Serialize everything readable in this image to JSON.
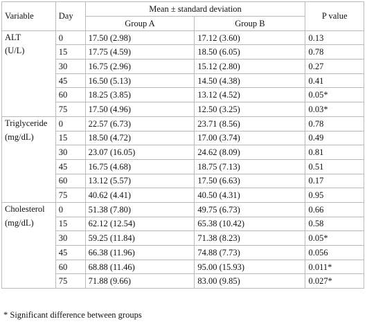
{
  "header": {
    "variable": "Variable",
    "day": "Day",
    "mean_sd": "Mean ± standard deviation",
    "p_value": "P value",
    "group_a": "Group A",
    "group_b": "Group B"
  },
  "groups": [
    {
      "name": "ALT",
      "unit": "(U/L)",
      "rows": [
        {
          "day": "0",
          "a": "17.50 (2.98)",
          "b": "17.12 (3.60)",
          "p": "0.13"
        },
        {
          "day": "15",
          "a": "17.75 (4.59)",
          "b": "18.50 (6.05)",
          "p": "0.78"
        },
        {
          "day": "30",
          "a": "16.75 (2.96)",
          "b": "15.12 (2.80)",
          "p": "0.27"
        },
        {
          "day": "45",
          "a": "16.50 (5.13)",
          "b": "14.50 (4.38)",
          "p": "0.41"
        },
        {
          "day": "60",
          "a": "18.25 (3.85)",
          "b": "13.12 (4.52)",
          "p": "0.05*"
        },
        {
          "day": "75",
          "a": "17.50 (4.96)",
          "b": "12.50 (3.25)",
          "p": "0.03*"
        }
      ]
    },
    {
      "name": "Triglyceride",
      "unit": "(mg/dL)",
      "rows": [
        {
          "day": "0",
          "a": "22.57 (6.73)",
          "b": "23.71 (8.56)",
          "p": "0.78"
        },
        {
          "day": "15",
          "a": "18.50 (4.72)",
          "b": "17.00 (3.74)",
          "p": "0.49"
        },
        {
          "day": "30",
          "a": "23.07 (16.05)",
          "b": "24.62 (8.09)",
          "p": "0.81"
        },
        {
          "day": "45",
          "a": "16.75 (4.68)",
          "b": "18.75 (7.13)",
          "p": "0.51"
        },
        {
          "day": "60",
          "a": "13.12 (5.57)",
          "b": "17.50 (6.63)",
          "p": "0.17"
        },
        {
          "day": "75",
          "a": "40.62 (4.41)",
          "b": "40.50 (4.31)",
          "p": "0.95"
        }
      ]
    },
    {
      "name": "Cholesterol",
      "unit": "(mg/dL)",
      "rows": [
        {
          "day": "0",
          "a": "51.38 (7.80)",
          "b": "49.75 (6.73)",
          "p": "0.66"
        },
        {
          "day": "15",
          "a": "62.12 (12.54)",
          "b": "65.38 (10.42)",
          "p": "0.58"
        },
        {
          "day": "30",
          "a": "59.25 (11.84)",
          "b": "71.38 (8.23)",
          "p": "0.05*"
        },
        {
          "day": "45",
          "a": "66.38 (11.96)",
          "b": "74.88 (7.73)",
          "p": "0.056"
        },
        {
          "day": "60",
          "a": "68.88 (11.46)",
          "b": "95.00 (15.93)",
          "p": "0.011*"
        },
        {
          "day": "75",
          "a": "71.88 (9.66)",
          "b": "83.00 (9.85)",
          "p": "0.027*"
        }
      ]
    }
  ],
  "footnote": "* Significant difference between groups"
}
